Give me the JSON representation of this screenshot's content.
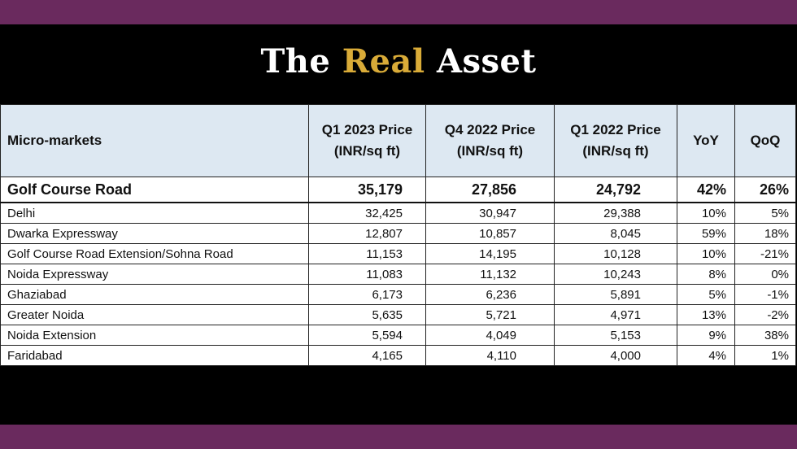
{
  "header": {
    "title_part1": "The",
    "title_accent": "Real",
    "title_part2": "Asset"
  },
  "table": {
    "columns": [
      "Micro-markets",
      "Q1 2023 Price (INR/sq ft)",
      "Q4 2022 Price (INR/sq ft)",
      "Q1 2022 Price (INR/sq ft)",
      "YoY",
      "QoQ"
    ],
    "highlight_row": [
      "Golf Course Road",
      "35,179",
      "27,856",
      "24,792",
      "42%",
      "26%"
    ],
    "rows": [
      [
        "Delhi",
        "32,425",
        "30,947",
        "29,388",
        "10%",
        "5%"
      ],
      [
        "Dwarka Expressway",
        "12,807",
        "10,857",
        "8,045",
        "59%",
        "18%"
      ],
      [
        "Golf Course Road Extension/Sohna Road",
        "11,153",
        "14,195",
        "10,128",
        "10%",
        "-21%"
      ],
      [
        "Noida Expressway",
        "11,083",
        "11,132",
        "10,243",
        "8%",
        "0%"
      ],
      [
        "Ghaziabad",
        "6,173",
        "6,236",
        "5,891",
        "5%",
        "-1%"
      ],
      [
        "Greater Noida",
        "5,635",
        "5,721",
        "4,971",
        "13%",
        "-2%"
      ],
      [
        "Noida Extension",
        "5,594",
        "4,049",
        "5,153",
        "9%",
        "38%"
      ],
      [
        "Faridabad",
        "4,165",
        "4,110",
        "4,000",
        "4%",
        "1%"
      ]
    ]
  },
  "colors": {
    "band": "#6a2a5e",
    "accent": "#d9ab38",
    "header_bg": "#dde8f2"
  }
}
